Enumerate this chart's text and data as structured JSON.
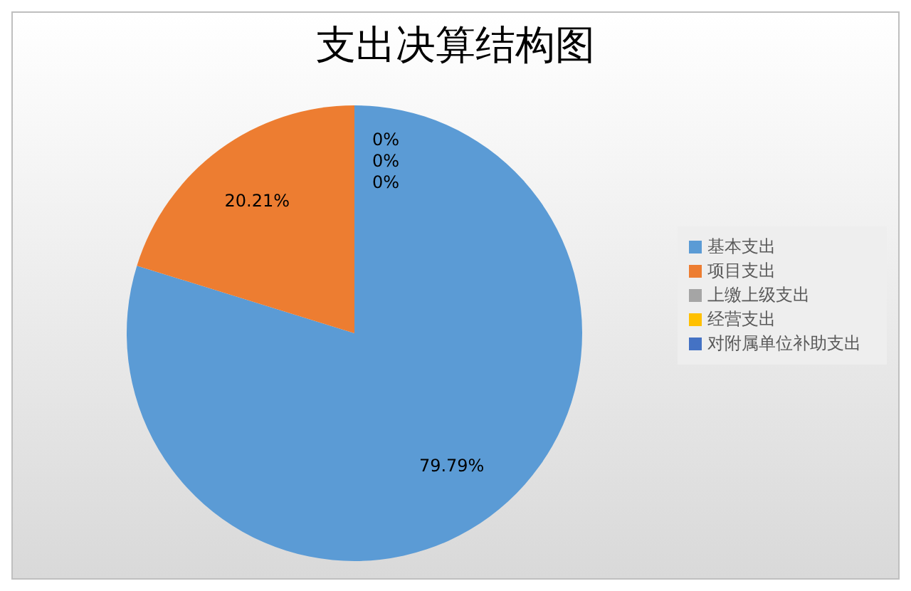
{
  "chart_data": {
    "type": "pie",
    "title": "支出决算结构图",
    "categories": [
      "基本支出",
      "项目支出",
      "上缴上级支出",
      "经营支出",
      "对附属单位补助支出"
    ],
    "values": [
      79.79,
      20.21,
      0,
      0,
      0
    ],
    "colors": [
      "#5b9bd5",
      "#ed7d31",
      "#a5a5a5",
      "#ffc000",
      "#4472c4"
    ],
    "value_labels": [
      "79.79%",
      "20.21%",
      "0%",
      "0%",
      "0%"
    ],
    "legend": "right"
  }
}
